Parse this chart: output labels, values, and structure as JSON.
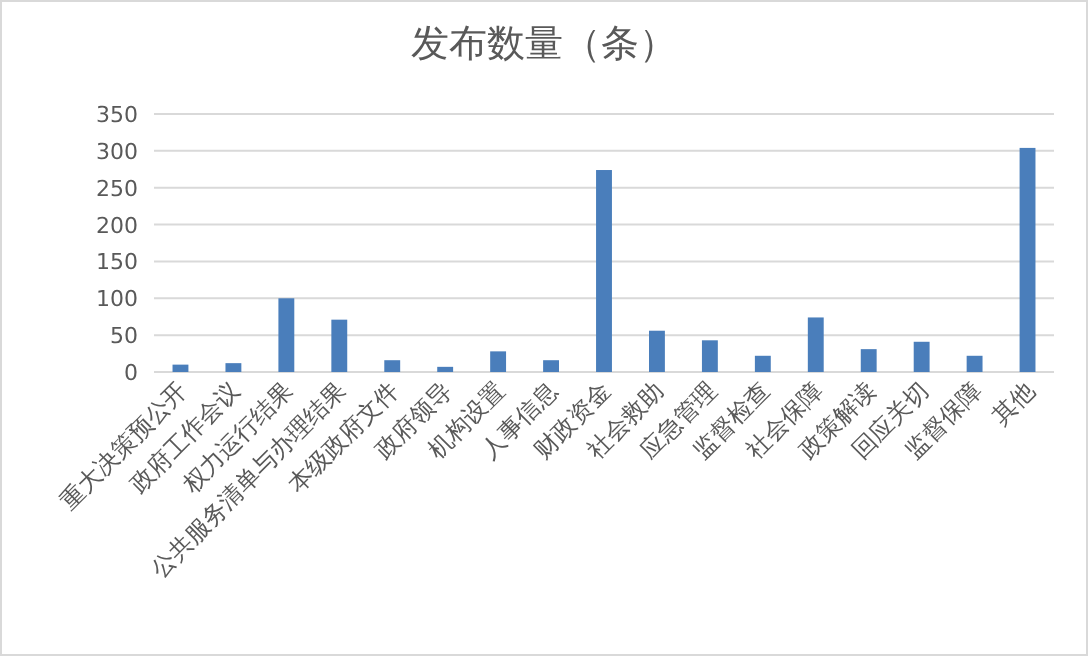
{
  "chart_data": {
    "type": "bar",
    "title": "发布数量（条）",
    "categories": [
      "重大决策预公开",
      "政府工作会议",
      "权力运行结果",
      "公共服务清单与办理结果",
      "本级政府文件",
      "政府领导",
      "机构设置",
      "人事信息",
      "财政资金",
      "社会救助",
      "应急管理",
      "监督检查",
      "社会保障",
      "政策解读",
      "回应关切",
      "监督保障",
      "其他"
    ],
    "values": [
      10,
      12,
      100,
      71,
      16,
      7,
      28,
      16,
      274,
      56,
      43,
      22,
      74,
      31,
      41,
      22,
      304
    ],
    "color": "#4a7ebb",
    "ylim": [
      0,
      350
    ],
    "yticks": [
      0,
      50,
      100,
      150,
      200,
      250,
      300,
      350
    ],
    "grid": "y"
  }
}
